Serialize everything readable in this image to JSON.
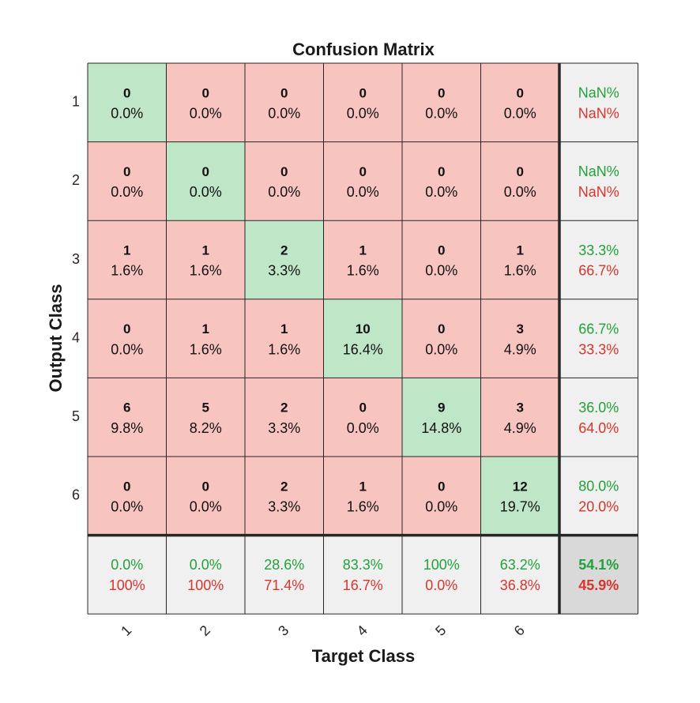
{
  "chart_data": {
    "type": "heatmap",
    "title": "Confusion Matrix",
    "xlabel": "Target Class",
    "ylabel": "Output Class",
    "x_classes": [
      "1",
      "2",
      "3",
      "4",
      "5",
      "6"
    ],
    "y_classes": [
      "1",
      "2",
      "3",
      "4",
      "5",
      "6"
    ],
    "counts": [
      [
        0,
        0,
        0,
        0,
        0,
        0
      ],
      [
        0,
        0,
        0,
        0,
        0,
        0
      ],
      [
        1,
        1,
        2,
        1,
        0,
        1
      ],
      [
        0,
        1,
        1,
        10,
        0,
        3
      ],
      [
        6,
        5,
        2,
        0,
        9,
        3
      ],
      [
        0,
        0,
        2,
        1,
        0,
        12
      ]
    ],
    "percents": [
      [
        "0.0%",
        "0.0%",
        "0.0%",
        "0.0%",
        "0.0%",
        "0.0%"
      ],
      [
        "0.0%",
        "0.0%",
        "0.0%",
        "0.0%",
        "0.0%",
        "0.0%"
      ],
      [
        "1.6%",
        "1.6%",
        "3.3%",
        "1.6%",
        "0.0%",
        "1.6%"
      ],
      [
        "0.0%",
        "1.6%",
        "1.6%",
        "16.4%",
        "0.0%",
        "4.9%"
      ],
      [
        "9.8%",
        "8.2%",
        "3.3%",
        "0.0%",
        "14.8%",
        "4.9%"
      ],
      [
        "0.0%",
        "0.0%",
        "3.3%",
        "1.6%",
        "0.0%",
        "19.7%"
      ]
    ],
    "row_summary": [
      {
        "correct": "NaN%",
        "incorrect": "NaN%"
      },
      {
        "correct": "NaN%",
        "incorrect": "NaN%"
      },
      {
        "correct": "33.3%",
        "incorrect": "66.7%"
      },
      {
        "correct": "66.7%",
        "incorrect": "33.3%"
      },
      {
        "correct": "36.0%",
        "incorrect": "64.0%"
      },
      {
        "correct": "80.0%",
        "incorrect": "20.0%"
      }
    ],
    "col_summary": [
      {
        "correct": "0.0%",
        "incorrect": "100%"
      },
      {
        "correct": "0.0%",
        "incorrect": "100%"
      },
      {
        "correct": "28.6%",
        "incorrect": "71.4%"
      },
      {
        "correct": "83.3%",
        "incorrect": "16.7%"
      },
      {
        "correct": "100%",
        "incorrect": "0.0%"
      },
      {
        "correct": "63.2%",
        "incorrect": "36.8%"
      }
    ],
    "overall": {
      "correct": "54.1%",
      "incorrect": "45.9%"
    },
    "colors": {
      "diagonal": "#bfe6c6",
      "off_diagonal": "#f8c4c0",
      "summary": "#f0f0f0",
      "overall": "#d9d9d9",
      "correct_text": "#22a13a",
      "incorrect_text": "#d9342b",
      "border": "#262626"
    }
  }
}
